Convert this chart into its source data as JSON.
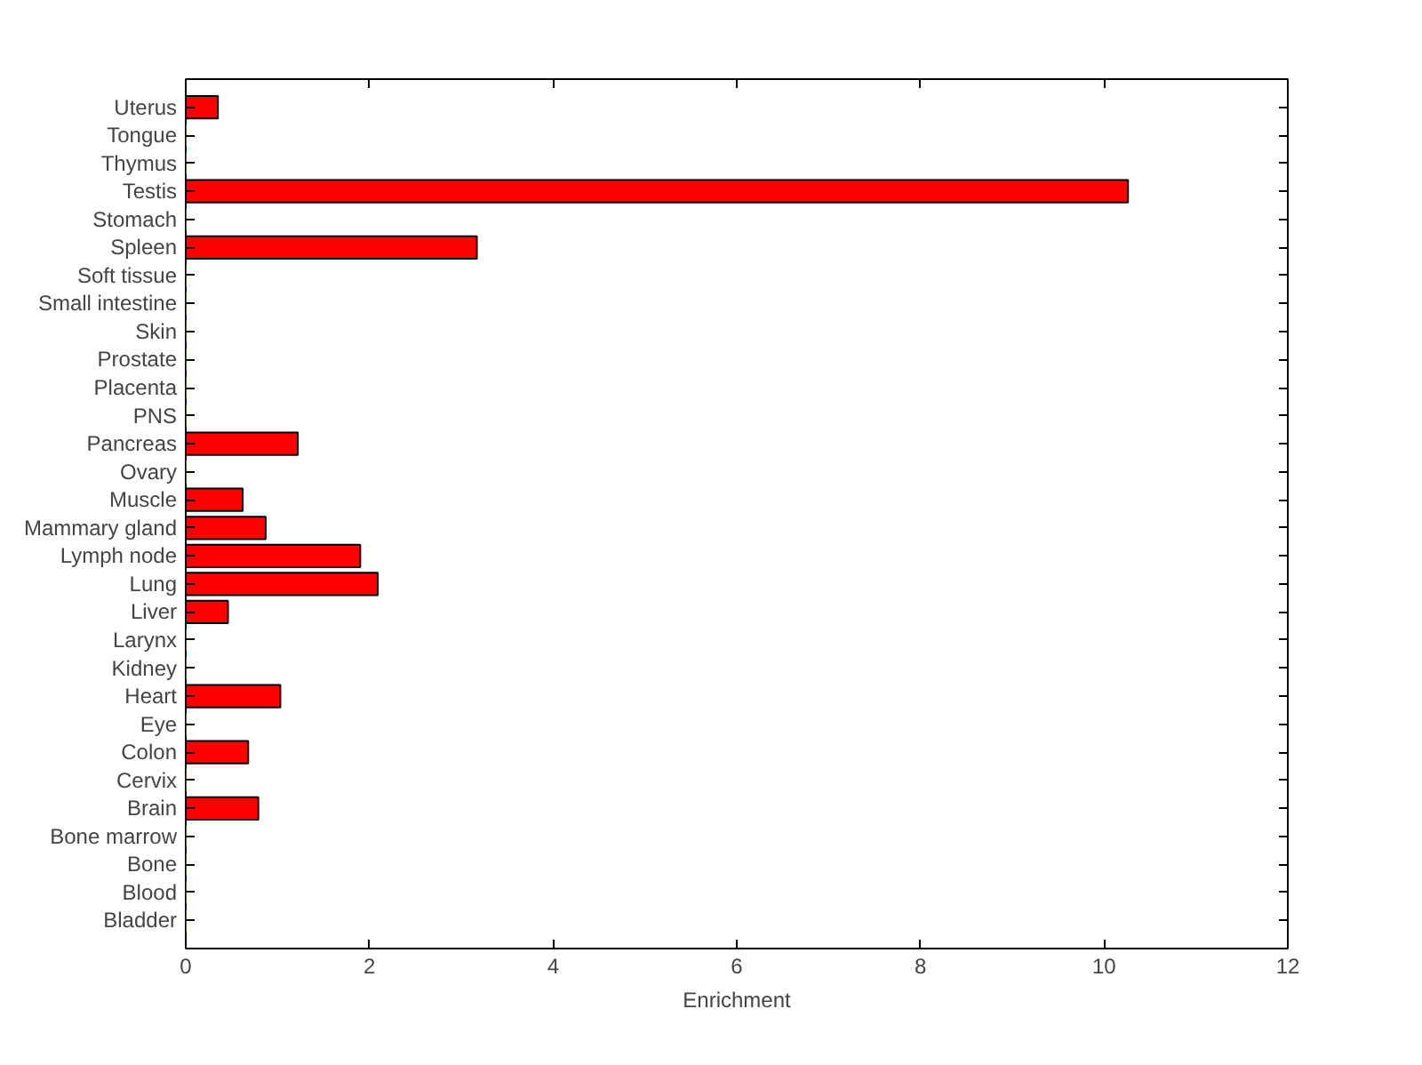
{
  "chart_data": {
    "type": "bar",
    "orientation": "horizontal",
    "xlabel": "Enrichment",
    "categories": [
      "Uterus",
      "Tongue",
      "Thymus",
      "Testis",
      "Stomach",
      "Spleen",
      "Soft tissue",
      "Small intestine",
      "Skin",
      "Prostate",
      "Placenta",
      "PNS",
      "Pancreas",
      "Ovary",
      "Muscle",
      "Mammary gland",
      "Lymph node",
      "Lung",
      "Liver",
      "Larynx",
      "Kidney",
      "Heart",
      "Eye",
      "Colon",
      "Cervix",
      "Brain",
      "Bone marrow",
      "Bone",
      "Blood",
      "Bladder"
    ],
    "values": [
      0.35,
      0,
      0,
      10.26,
      0,
      3.17,
      0,
      0,
      0,
      0,
      0,
      0,
      1.22,
      0,
      0.62,
      0.87,
      1.9,
      2.09,
      0.46,
      0,
      0,
      1.03,
      0,
      0.68,
      0,
      0.79,
      0,
      0,
      0,
      0
    ],
    "color": "#ff0000",
    "xlim": [
      0,
      12
    ],
    "xticks": [
      0,
      2,
      4,
      6,
      8,
      10,
      12
    ],
    "grid": false
  }
}
